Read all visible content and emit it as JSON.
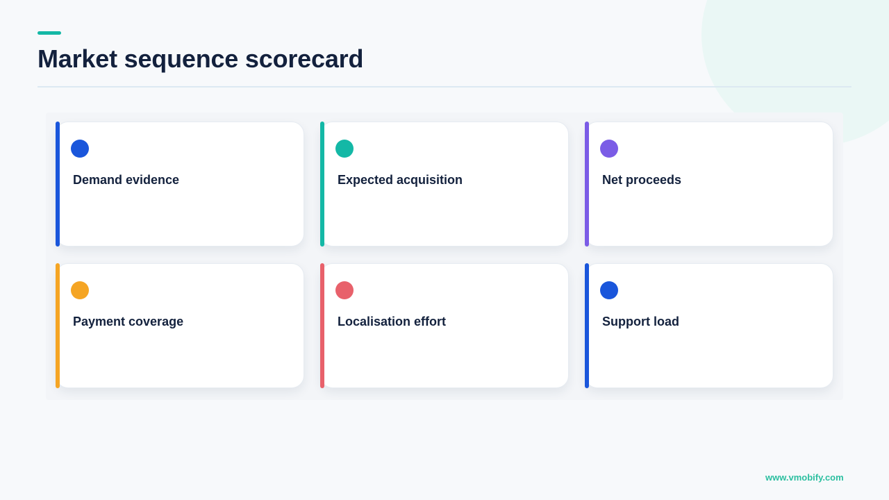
{
  "title": "Market sequence scorecard",
  "accent_color": "#14b8a6",
  "cards": [
    {
      "label": "Demand evidence",
      "color": "#1a56db"
    },
    {
      "label": "Expected acquisition",
      "color": "#14b8a6"
    },
    {
      "label": "Net proceeds",
      "color": "#7b5ce6"
    },
    {
      "label": "Payment coverage",
      "color": "#f5a524"
    },
    {
      "label": "Localisation effort",
      "color": "#e8616b"
    },
    {
      "label": "Support load",
      "color": "#1a56db"
    }
  ],
  "footer": {
    "url": "www.vmobify.com"
  }
}
